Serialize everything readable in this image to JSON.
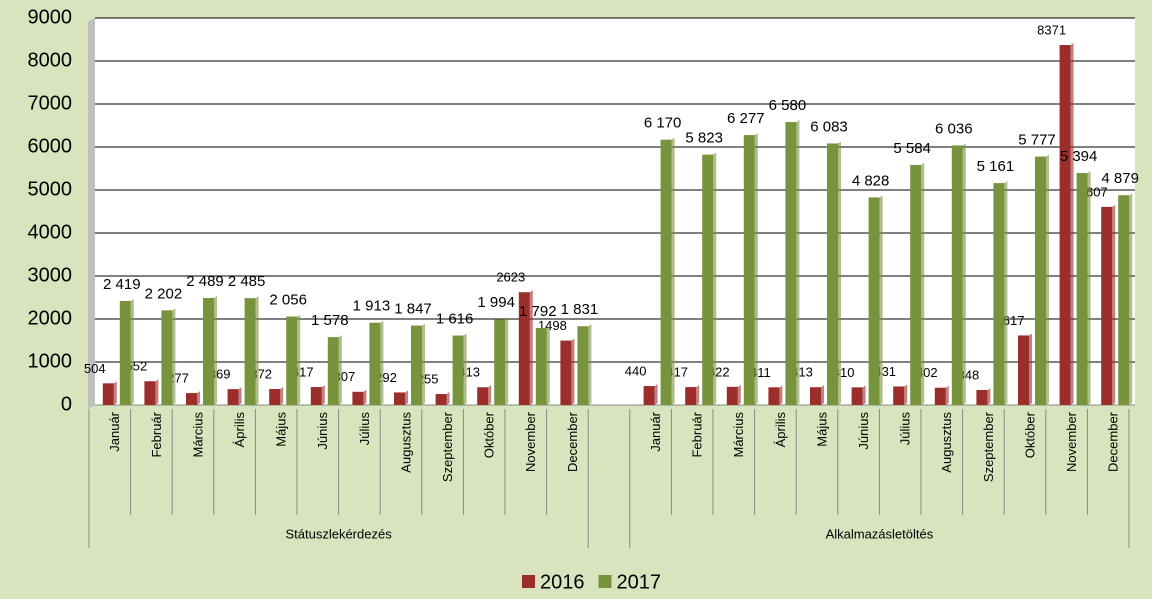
{
  "chart_data": {
    "type": "bar",
    "categories": [
      "Január",
      "Február",
      "Március",
      "Április",
      "Május",
      "Június",
      "Július",
      "Augusztus",
      "Szeptember",
      "Október",
      "November",
      "December",
      null,
      "Január",
      "Február",
      "Március",
      "Április",
      "Május",
      "Június",
      "Július",
      "Augusztus",
      "Szeptember",
      "Október",
      "November",
      "December"
    ],
    "category_groups": [
      "Státuszlekérdezés",
      "Alkalmazásletöltés"
    ],
    "series": [
      {
        "name": "2016",
        "color": "#9b2d2a",
        "values": [
          504,
          552,
          277,
          369,
          372,
          417,
          307,
          292,
          255,
          413,
          2623,
          1498,
          null,
          440,
          417,
          422,
          411,
          413,
          410,
          431,
          402,
          348,
          1617,
          8371,
          4607
        ]
      },
      {
        "name": "2017",
        "color": "#77933c",
        "values": [
          2419,
          2202,
          2489,
          2485,
          2056,
          1578,
          1913,
          1847,
          1616,
          1994,
          1792,
          1831,
          null,
          6170,
          5823,
          6277,
          6580,
          6083,
          4828,
          5584,
          6036,
          5161,
          5777,
          5394,
          4879
        ],
        "value_labels": [
          "2 419",
          "2 202",
          "2 489",
          "2 485",
          "2 056",
          "1 578",
          "1 913",
          "1 847",
          "1 616",
          "1 994",
          "1 792",
          "1 831",
          null,
          "6 170",
          "5 823",
          "6 277",
          "6 580",
          "6 083",
          "4 828",
          "5 584",
          "6 036",
          "5 161",
          "5 777",
          "5 394",
          "4 879"
        ]
      }
    ],
    "ylim": [
      0,
      9000
    ],
    "yticks": [
      0,
      1000,
      2000,
      3000,
      4000,
      5000,
      6000,
      7000,
      8000,
      9000
    ],
    "grid": true,
    "legend": "bottom"
  }
}
